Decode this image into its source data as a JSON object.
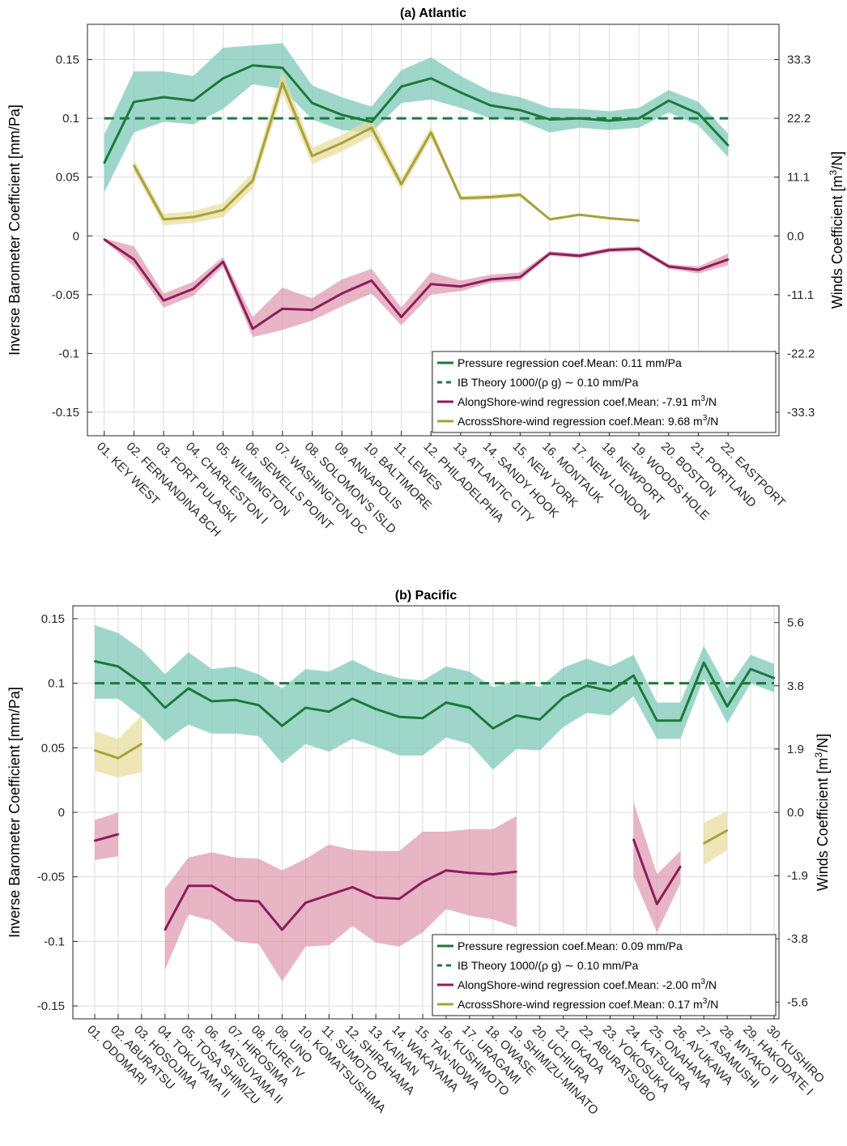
{
  "colors": {
    "pressure_line": "#1b7a3a",
    "pressure_band": "#7ecab8",
    "ib_theory": "#1b7a3a",
    "along_line": "#8c1d5a",
    "along_band": "#dc8da6",
    "across_line": "#a6a23a",
    "across_band": "#e8dc9a"
  },
  "chart_data": [
    {
      "id": "atlantic",
      "type": "line",
      "title": "(a) Atlantic",
      "ylabel": "Inverse Barometer Coefficient [mm/Pa]",
      "y2label_main": "Winds Coefficient [m",
      "y2label_sup": "3",
      "y2label_end": "/N]",
      "ylim": [
        -0.17,
        0.18
      ],
      "yticks": [
        -0.15,
        -0.1,
        -0.05,
        0,
        0.05,
        0.1,
        0.15
      ],
      "ytick_labels": [
        "-0.15",
        "-0.1",
        "-0.05",
        "0",
        "0.05",
        "0.1",
        "0.15"
      ],
      "y2ticks": [
        -0.15,
        -0.1,
        -0.05,
        0,
        0.05,
        0.1,
        0.15
      ],
      "y2tick_labels": [
        "-33.3",
        "-22.2",
        "-11.1",
        "0.0",
        "11.1",
        "22.2",
        "33.3"
      ],
      "grid": true,
      "legend_position": "bottom-right",
      "categories": [
        "01. KEY WEST",
        "02. FERNANDINA BCH",
        "03. FORT PULASKI",
        "04. CHARLESTON I",
        "05. WILMINGTON",
        "06. SEWELLS POINT",
        "07. WASHINGTON DC",
        "08. SOLOMON'S ISLD",
        "09. ANNAPOLIS",
        "10. BALTIMORE",
        "11. LEWES",
        "12. PHILADELPHIA",
        "13. ATLANTIC CITY",
        "14. SANDY HOOK",
        "15. NEW YORK",
        "16. MONTAUK",
        "17. NEW LONDON",
        "18. NEWPORT",
        "19. WOODS HOLE",
        "20. BOSTON",
        "21. PORTLAND",
        "22. EASTPORT"
      ],
      "ib_theory": 0.1,
      "series": [
        {
          "key": "pressure",
          "legend": "Pressure regression coef.Mean: 0.11 mm/Pa",
          "values": [
            0.062,
            0.114,
            0.118,
            0.115,
            0.134,
            0.145,
            0.143,
            0.113,
            0.103,
            0.097,
            0.127,
            0.134,
            0.122,
            0.111,
            0.107,
            0.099,
            0.1,
            0.098,
            0.1,
            0.115,
            0.104,
            0.077
          ],
          "lower": [
            0.037,
            0.088,
            0.097,
            0.095,
            0.108,
            0.129,
            0.125,
            0.099,
            0.09,
            0.088,
            0.113,
            0.116,
            0.109,
            0.1,
            0.098,
            0.088,
            0.092,
            0.09,
            0.092,
            0.105,
            0.094,
            0.067
          ],
          "upper": [
            0.086,
            0.14,
            0.14,
            0.136,
            0.16,
            0.162,
            0.164,
            0.128,
            0.118,
            0.11,
            0.141,
            0.152,
            0.136,
            0.123,
            0.118,
            0.109,
            0.108,
            0.106,
            0.109,
            0.124,
            0.114,
            0.087
          ]
        },
        {
          "key": "ib",
          "legend": "IB Theory  1000/(ρ g) ∼ 0.10 mm/Pa"
        },
        {
          "key": "along",
          "legend_main": "AlongShore-wind regression coef.Mean: -7.91 m",
          "legend_sup": "3",
          "legend_end": "/N",
          "values": [
            -0.003,
            -0.02,
            -0.055,
            -0.045,
            -0.022,
            -0.079,
            -0.062,
            -0.063,
            -0.049,
            -0.038,
            -0.069,
            -0.041,
            -0.043,
            -0.037,
            -0.035,
            -0.015,
            -0.017,
            -0.012,
            -0.011,
            -0.026,
            -0.029,
            -0.02
          ],
          "lower": [
            -0.004,
            -0.026,
            -0.061,
            -0.051,
            -0.026,
            -0.086,
            -0.08,
            -0.072,
            -0.06,
            -0.049,
            -0.076,
            -0.05,
            -0.047,
            -0.04,
            -0.038,
            -0.017,
            -0.019,
            -0.014,
            -0.013,
            -0.028,
            -0.032,
            -0.025
          ],
          "upper": [
            -0.002,
            -0.009,
            -0.049,
            -0.039,
            -0.018,
            -0.069,
            -0.044,
            -0.053,
            -0.037,
            -0.028,
            -0.061,
            -0.031,
            -0.038,
            -0.033,
            -0.031,
            -0.013,
            -0.015,
            -0.01,
            -0.009,
            -0.024,
            -0.026,
            -0.015
          ]
        },
        {
          "key": "across",
          "legend_main": "AcrossShore-wind regression coef.Mean: 9.68 m",
          "legend_sup": "3",
          "legend_end": "/N",
          "values": [
            null,
            0.06,
            0.014,
            0.016,
            0.022,
            0.047,
            0.13,
            0.068,
            0.079,
            0.092,
            0.044,
            0.088,
            0.032,
            0.033,
            0.035,
            0.014,
            0.018,
            0.015,
            0.013,
            null,
            null,
            null
          ],
          "lower": [
            null,
            0.055,
            0.009,
            0.011,
            0.016,
            0.04,
            0.121,
            0.061,
            0.072,
            0.085,
            0.039,
            0.083,
            0.03,
            0.031,
            0.033,
            0.013,
            0.017,
            0.014,
            0.012,
            null,
            null,
            null
          ],
          "upper": [
            null,
            0.065,
            0.019,
            0.021,
            0.028,
            0.054,
            0.14,
            0.075,
            0.086,
            0.1,
            0.049,
            0.093,
            0.034,
            0.035,
            0.037,
            0.015,
            0.019,
            0.016,
            0.014,
            null,
            null,
            null
          ]
        }
      ]
    },
    {
      "id": "pacific",
      "type": "line",
      "title": "(b) Pacific",
      "ylabel": "Inverse Barometer Coefficient [mm/Pa]",
      "y2label_main": "Winds Coefficient [m",
      "y2label_sup": "3",
      "y2label_end": "/N]",
      "ylim": [
        -0.16,
        0.16
      ],
      "yticks": [
        -0.15,
        -0.1,
        -0.05,
        0,
        0.05,
        0.1,
        0.15
      ],
      "ytick_labels": [
        "-0.15",
        "-0.1",
        "-0.05",
        "0",
        "0.05",
        "0.1",
        "0.15"
      ],
      "y2ticks": [
        -0.147,
        -0.098,
        -0.049,
        0,
        0.049,
        0.098,
        0.147
      ],
      "y2tick_labels": [
        "-5.6",
        "-3.8",
        "-1.9",
        "0.0",
        "1.9",
        "3.8",
        "5.6"
      ],
      "grid": true,
      "legend_position": "bottom-right",
      "categories": [
        "01. ODOMARI",
        "02. ABURATSU",
        "03. HOSOJIMA",
        "04. TOKUYAMA II",
        "05. TOSA SHIMIZU",
        "06. MATSUYAMA II",
        "07. HIROSIMA",
        "08. KURE IV",
        "09. UNO",
        "10. KOMATSUSHIMA",
        "11. SUMOTO",
        "12. SHIRAHAMA",
        "13. KAINAN",
        "14. WAKAYAMA",
        "15. TAN-NOWA",
        "16. KUSHIMOTO",
        "17. URAGAMI",
        "18. OWASE",
        "19. SHIMIZU-MINATO",
        "20. UCHIURA",
        "21. OKADA",
        "22. ABURATSUBO",
        "23. YOKOSUKA",
        "24. KATSUURA",
        "25. ONAHAMA",
        "26. AYUKAWA",
        "27. ASAMUSHI",
        "28. MIYAKO II",
        "29. HAKODATE I",
        "30. KUSHIRO"
      ],
      "ib_theory": 0.1,
      "series": [
        {
          "key": "pressure",
          "legend": "Pressure regression coef.Mean: 0.09 mm/Pa",
          "values": [
            0.117,
            0.113,
            0.1,
            0.081,
            0.096,
            0.086,
            0.087,
            0.083,
            0.067,
            0.081,
            0.078,
            0.088,
            0.08,
            0.074,
            0.073,
            0.085,
            0.081,
            0.065,
            0.075,
            0.072,
            0.089,
            0.098,
            0.094,
            0.106,
            0.071,
            0.071,
            0.116,
            0.082,
            0.111,
            0.104
          ],
          "lower": [
            0.088,
            0.088,
            0.074,
            0.055,
            0.068,
            0.061,
            0.061,
            0.059,
            0.038,
            0.053,
            0.047,
            0.057,
            0.051,
            0.044,
            0.044,
            0.058,
            0.053,
            0.033,
            0.049,
            0.048,
            0.066,
            0.077,
            0.075,
            0.09,
            0.057,
            0.057,
            0.104,
            0.069,
            0.1,
            0.093
          ],
          "upper": [
            0.145,
            0.139,
            0.126,
            0.107,
            0.124,
            0.111,
            0.113,
            0.107,
            0.096,
            0.111,
            0.109,
            0.118,
            0.109,
            0.104,
            0.102,
            0.113,
            0.109,
            0.097,
            0.102,
            0.097,
            0.112,
            0.119,
            0.113,
            0.122,
            0.085,
            0.085,
            0.129,
            0.096,
            0.122,
            0.115
          ]
        },
        {
          "key": "ib",
          "legend": "IB Theory  1000/(ρ g) ∼ 0.10 mm/Pa"
        },
        {
          "key": "along",
          "legend_main": "AlongShore-wind regression coef.Mean: -2.00 m",
          "legend_sup": "3",
          "legend_end": "/N",
          "values": [
            -0.022,
            -0.017,
            null,
            -0.091,
            -0.057,
            -0.057,
            -0.068,
            -0.069,
            -0.091,
            -0.07,
            -0.064,
            -0.058,
            -0.066,
            -0.067,
            -0.054,
            -0.045,
            -0.047,
            -0.048,
            -0.046,
            null,
            null,
            null,
            null,
            -0.021,
            -0.071,
            -0.042,
            null,
            null,
            null,
            null
          ],
          "lower": [
            -0.037,
            -0.034,
            null,
            -0.122,
            -0.079,
            -0.084,
            -0.1,
            -0.102,
            -0.131,
            -0.104,
            -0.103,
            -0.088,
            -0.101,
            -0.104,
            -0.093,
            -0.075,
            -0.08,
            -0.083,
            -0.089,
            null,
            null,
            null,
            null,
            -0.05,
            -0.093,
            -0.055,
            null,
            null,
            null,
            null
          ],
          "upper": [
            -0.006,
            0.0,
            null,
            -0.059,
            -0.035,
            -0.031,
            -0.035,
            -0.036,
            -0.045,
            -0.036,
            -0.025,
            -0.029,
            -0.03,
            -0.03,
            -0.015,
            -0.015,
            -0.013,
            -0.013,
            -0.003,
            null,
            null,
            null,
            null,
            0.008,
            -0.048,
            -0.03,
            null,
            null,
            null,
            null
          ]
        },
        {
          "key": "across",
          "legend_main": "AcrossShore-wind regression coef.Mean: 0.17 m",
          "legend_sup": "3",
          "legend_end": "/N",
          "values": [
            0.048,
            0.042,
            0.053,
            null,
            null,
            null,
            null,
            null,
            null,
            null,
            null,
            null,
            null,
            null,
            null,
            null,
            null,
            null,
            null,
            null,
            null,
            null,
            null,
            null,
            null,
            null,
            -0.024,
            -0.014,
            null,
            null
          ],
          "lower": [
            0.032,
            0.027,
            0.031,
            null,
            null,
            null,
            null,
            null,
            null,
            null,
            null,
            null,
            null,
            null,
            null,
            null,
            null,
            null,
            null,
            null,
            null,
            null,
            null,
            null,
            null,
            null,
            -0.041,
            -0.029,
            null,
            null
          ],
          "upper": [
            0.063,
            0.057,
            0.075,
            null,
            null,
            null,
            null,
            null,
            null,
            null,
            null,
            null,
            null,
            null,
            null,
            null,
            null,
            null,
            null,
            null,
            null,
            null,
            null,
            null,
            null,
            null,
            -0.008,
            0.001,
            null,
            null
          ]
        }
      ]
    }
  ]
}
